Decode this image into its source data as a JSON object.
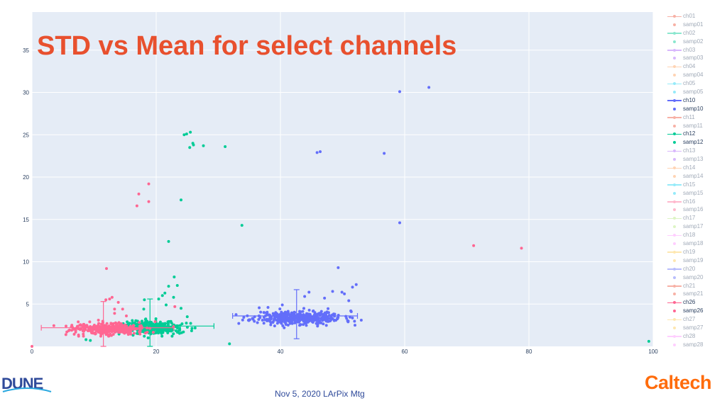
{
  "title": "STD vs Mean for select channels",
  "footer": "Nov 5, 2020 LArPix Mtg",
  "logos": {
    "left": "DUNE",
    "right": "Caltech"
  },
  "colors": {
    "title": "#e8502e",
    "plot_bg": "#e5ecf6",
    "ch10": "#636efa",
    "ch12": "#00cc96",
    "ch26": "#ff6692",
    "samp01": "#ef553b",
    "caltech": "#ff6c0c",
    "dune_blue": "#2f4a9a"
  },
  "legend": [
    {
      "label": "ch01",
      "color": "#ef553b",
      "kind": "line",
      "active": false
    },
    {
      "label": "samp01",
      "color": "#ef553b",
      "kind": "marker",
      "active": false
    },
    {
      "label": "ch02",
      "color": "#00cc96",
      "kind": "line",
      "active": false
    },
    {
      "label": "samp02",
      "color": "#00cc96",
      "kind": "marker",
      "active": false
    },
    {
      "label": "ch03",
      "color": "#ab63fa",
      "kind": "line",
      "active": false
    },
    {
      "label": "samp03",
      "color": "#ab63fa",
      "kind": "marker",
      "active": false
    },
    {
      "label": "ch04",
      "color": "#ffa15a",
      "kind": "line",
      "active": false
    },
    {
      "label": "samp04",
      "color": "#ffa15a",
      "kind": "marker",
      "active": false
    },
    {
      "label": "ch05",
      "color": "#19d3f3",
      "kind": "line",
      "active": false
    },
    {
      "label": "samp05",
      "color": "#19d3f3",
      "kind": "marker",
      "active": false
    },
    {
      "label": "ch10",
      "color": "#636efa",
      "kind": "line",
      "active": true
    },
    {
      "label": "samp10",
      "color": "#636efa",
      "kind": "marker",
      "active": true
    },
    {
      "label": "ch11",
      "color": "#ef553b",
      "kind": "line",
      "active": false
    },
    {
      "label": "samp11",
      "color": "#ef553b",
      "kind": "marker",
      "active": false
    },
    {
      "label": "ch12",
      "color": "#00cc96",
      "kind": "line",
      "active": true
    },
    {
      "label": "samp12",
      "color": "#00cc96",
      "kind": "marker",
      "active": true
    },
    {
      "label": "ch13",
      "color": "#ab63fa",
      "kind": "line",
      "active": false
    },
    {
      "label": "samp13",
      "color": "#ab63fa",
      "kind": "marker",
      "active": false
    },
    {
      "label": "ch14",
      "color": "#ffa15a",
      "kind": "line",
      "active": false
    },
    {
      "label": "samp14",
      "color": "#ffa15a",
      "kind": "marker",
      "active": false
    },
    {
      "label": "ch15",
      "color": "#19d3f3",
      "kind": "line",
      "active": false
    },
    {
      "label": "samp15",
      "color": "#19d3f3",
      "kind": "marker",
      "active": false
    },
    {
      "label": "ch16",
      "color": "#ff6692",
      "kind": "line",
      "active": false
    },
    {
      "label": "samp16",
      "color": "#ff6692",
      "kind": "marker",
      "active": false
    },
    {
      "label": "ch17",
      "color": "#b6e880",
      "kind": "line",
      "active": false
    },
    {
      "label": "samp17",
      "color": "#b6e880",
      "kind": "marker",
      "active": false
    },
    {
      "label": "ch18",
      "color": "#ff97ff",
      "kind": "line",
      "active": false
    },
    {
      "label": "samp18",
      "color": "#ff97ff",
      "kind": "marker",
      "active": false
    },
    {
      "label": "ch19",
      "color": "#fecb52",
      "kind": "line",
      "active": false
    },
    {
      "label": "samp19",
      "color": "#fecb52",
      "kind": "marker",
      "active": false
    },
    {
      "label": "ch20",
      "color": "#636efa",
      "kind": "line",
      "active": false
    },
    {
      "label": "samp20",
      "color": "#636efa",
      "kind": "marker",
      "active": false
    },
    {
      "label": "ch21",
      "color": "#ef553b",
      "kind": "line",
      "active": false
    },
    {
      "label": "samp21",
      "color": "#ef553b",
      "kind": "marker",
      "active": false
    },
    {
      "label": "ch26",
      "color": "#ff6692",
      "kind": "line",
      "active": true
    },
    {
      "label": "samp26",
      "color": "#ff6692",
      "kind": "marker",
      "active": true
    },
    {
      "label": "ch27",
      "color": "#fecb52",
      "kind": "line",
      "active": false
    },
    {
      "label": "samp27",
      "color": "#fecb52",
      "kind": "marker",
      "active": false
    },
    {
      "label": "ch28",
      "color": "#ff97ff",
      "kind": "line",
      "active": false
    },
    {
      "label": "samp28",
      "color": "#ff97ff",
      "kind": "marker",
      "active": false
    }
  ],
  "chart_data": {
    "type": "scatter",
    "title": "STD vs Mean for select channels",
    "xlabel": "",
    "ylabel": "",
    "xlim": [
      0,
      100
    ],
    "ylim": [
      0,
      39.5
    ],
    "xticks": [
      0,
      20,
      40,
      60,
      80,
      100
    ],
    "yticks": [
      5,
      10,
      15,
      20,
      25,
      30,
      35
    ],
    "grid": true,
    "legend_position": "right",
    "series": [
      {
        "name": "samp10",
        "kind": "marker",
        "color": "#636efa",
        "cluster": {
          "cx": 43,
          "cy": 3.4,
          "sx": 3.6,
          "sy": 0.4,
          "n": 420,
          "seed": 11
        },
        "points": [
          [
            59.2,
            30.1
          ],
          [
            63.9,
            30.6
          ],
          [
            45.9,
            22.9
          ],
          [
            46.4,
            23.0
          ],
          [
            56.7,
            22.8
          ],
          [
            59.2,
            14.6
          ],
          [
            49.3,
            9.3
          ],
          [
            52.2,
            7.3
          ],
          [
            51.6,
            7.0
          ],
          [
            48.4,
            6.5
          ],
          [
            49.9,
            6.4
          ],
          [
            47.1,
            5.7
          ],
          [
            51.0,
            5.4
          ],
          [
            50.3,
            6.2
          ],
          [
            44.6,
            6.4
          ],
          [
            43.9,
            5.9
          ],
          [
            36.3,
            2.8
          ],
          [
            38.0,
            4.6
          ],
          [
            40.3,
            4.9
          ],
          [
            52.0,
            2.5
          ]
        ]
      },
      {
        "name": "ch10",
        "kind": "errorbar",
        "color": "#636efa",
        "center": [
          42.6,
          3.6
        ],
        "xerr": [
          32.3,
          52.4
        ],
        "yerr": [
          0.9,
          6.7
        ]
      },
      {
        "name": "samp12",
        "kind": "marker",
        "color": "#00cc96",
        "cluster": {
          "cx": 19.5,
          "cy": 2.2,
          "sx": 2.2,
          "sy": 0.4,
          "n": 360,
          "seed": 12
        },
        "points": [
          [
            24.5,
            25.0
          ],
          [
            24.9,
            25.1
          ],
          [
            25.5,
            25.3
          ],
          [
            25.4,
            23.5
          ],
          [
            25.9,
            24.0
          ],
          [
            26.0,
            23.8
          ],
          [
            27.6,
            23.7
          ],
          [
            31.1,
            23.6
          ],
          [
            24.0,
            17.3
          ],
          [
            33.8,
            14.3
          ],
          [
            22.0,
            12.4
          ],
          [
            22.9,
            8.2
          ],
          [
            23.4,
            7.2
          ],
          [
            22.0,
            7.1
          ],
          [
            21.4,
            6.3
          ],
          [
            21.0,
            6.0
          ],
          [
            22.8,
            5.8
          ],
          [
            20.4,
            5.6
          ],
          [
            18.1,
            5.5
          ],
          [
            18.0,
            4.4
          ],
          [
            21.6,
            4.9
          ],
          [
            24.0,
            4.5
          ],
          [
            25.0,
            3.5
          ],
          [
            31.8,
            0.3
          ],
          [
            99.3,
            0.6
          ],
          [
            8.7,
            0.8
          ],
          [
            9.4,
            0.7
          ],
          [
            18.7,
            1.0
          ]
        ]
      },
      {
        "name": "ch12",
        "kind": "errorbar",
        "color": "#00cc96",
        "center": [
          19.0,
          2.4
        ],
        "xerr": [
          14.3,
          29.3
        ],
        "yerr": [
          0.0,
          5.6
        ]
      },
      {
        "name": "samp26",
        "kind": "marker",
        "color": "#ff6692",
        "cluster": {
          "cx": 12.3,
          "cy": 2.1,
          "sx": 2.8,
          "sy": 0.35,
          "n": 340,
          "seed": 26
        },
        "points": [
          [
            18.8,
            19.2
          ],
          [
            17.2,
            18.0
          ],
          [
            18.8,
            17.1
          ],
          [
            16.9,
            16.6
          ],
          [
            71.1,
            11.9
          ],
          [
            78.8,
            11.6
          ],
          [
            12.0,
            9.2
          ],
          [
            12.9,
            5.8
          ],
          [
            12.5,
            5.6
          ],
          [
            11.9,
            5.5
          ],
          [
            13.9,
            5.2
          ],
          [
            14.6,
            4.4
          ],
          [
            13.3,
            4.4
          ],
          [
            15.2,
            3.6
          ],
          [
            13.3,
            3.9
          ],
          [
            8.3,
            2.6
          ],
          [
            6.4,
            1.9
          ],
          [
            10.7,
            3.1
          ],
          [
            9.3,
            2.9
          ],
          [
            23.0,
            4.7
          ],
          [
            0.0,
            0.0
          ]
        ]
      },
      {
        "name": "ch26",
        "kind": "errorbar",
        "color": "#ff6692",
        "center": [
          11.5,
          2.2
        ],
        "xerr": [
          1.5,
          22.8
        ],
        "yerr": [
          0.0,
          5.3
        ]
      }
    ]
  }
}
